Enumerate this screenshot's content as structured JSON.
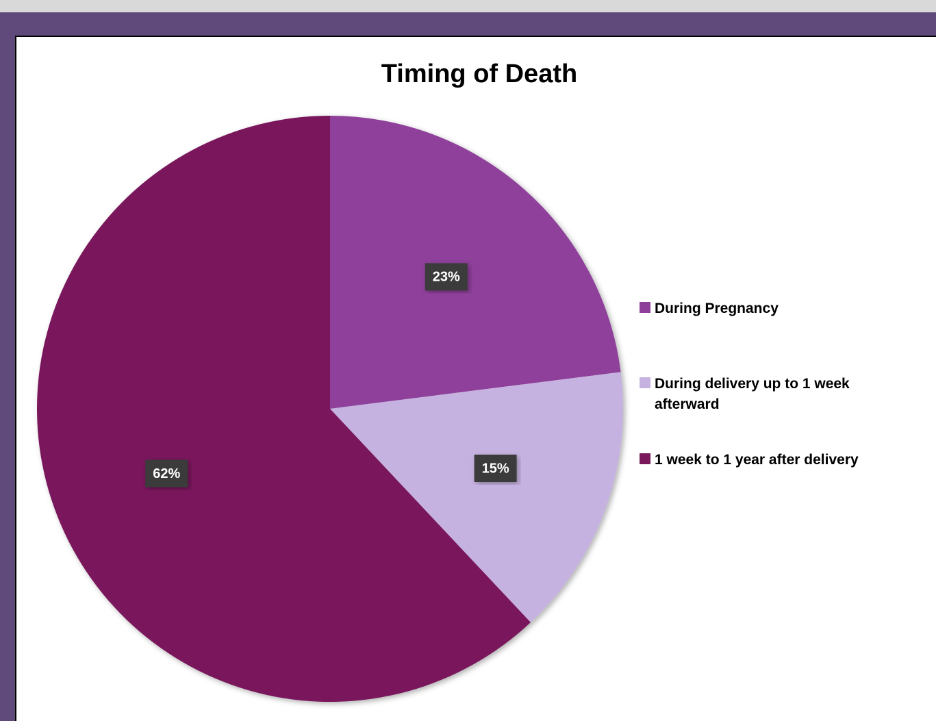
{
  "chart_data": {
    "type": "pie",
    "title": "Timing of Death",
    "categories": [
      "During Pregnancy",
      "During delivery up to 1 week afterward",
      "1 week to 1 year after delivery"
    ],
    "values": [
      23,
      15,
      62
    ],
    "value_labels": [
      "23%",
      "15%",
      "62%"
    ],
    "colors": [
      "#8e3f9a",
      "#c6b2e0",
      "#79195c"
    ],
    "legend": "right"
  }
}
